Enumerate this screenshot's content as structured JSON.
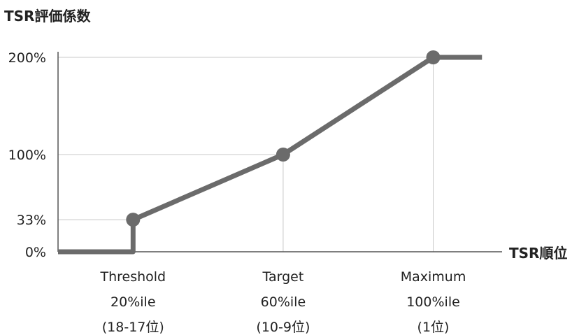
{
  "chart_data": {
    "type": "line",
    "ylabel": "TSR評価係数",
    "xlabel": "TSR順位",
    "yticks": [
      {
        "value": 0,
        "label": "0%"
      },
      {
        "value": 33,
        "label": "33%"
      },
      {
        "value": 100,
        "label": "100%"
      },
      {
        "value": 200,
        "label": "200%"
      }
    ],
    "ylim": [
      0,
      200
    ],
    "categories": [
      {
        "name": "Threshold",
        "percentile": "20%ile",
        "rank": "(18-17位)"
      },
      {
        "name": "Target",
        "percentile": "60%ile",
        "rank": "(10-9位)"
      },
      {
        "name": "Maximum",
        "percentile": "100%ile",
        "rank": "(1位)"
      }
    ],
    "x_range": [
      0,
      115
    ],
    "series": [
      {
        "points": [
          {
            "x": 0,
            "y": 0
          },
          {
            "x": 20,
            "y": 0
          },
          {
            "x": 20,
            "y": 33
          },
          {
            "x": 60,
            "y": 100
          },
          {
            "x": 100,
            "y": 200
          },
          {
            "x": 113,
            "y": 200
          }
        ],
        "markers": [
          {
            "x": 20,
            "y": 33
          },
          {
            "x": 60,
            "y": 100
          },
          {
            "x": 100,
            "y": 200
          }
        ]
      }
    ],
    "guide_lines": true,
    "colors": {
      "line": "#6b6b6b",
      "guide": "#c8c8c8",
      "axis": "#555555"
    }
  }
}
